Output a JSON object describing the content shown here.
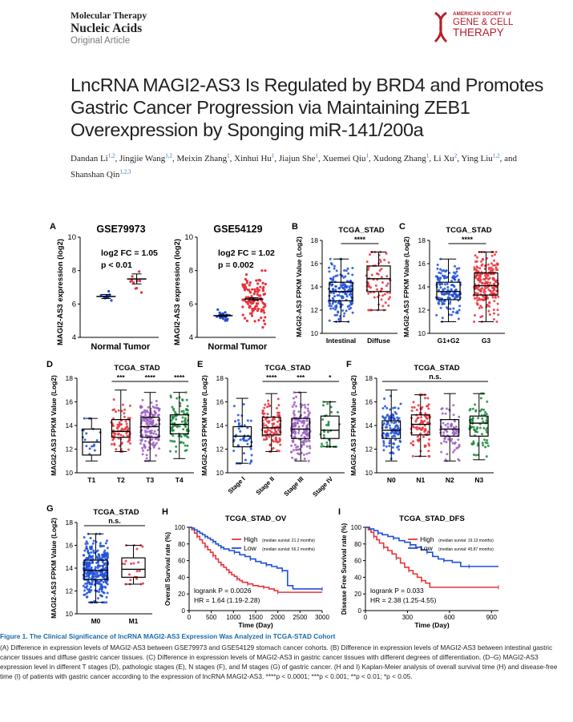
{
  "journal": {
    "line1": "Molecular Therapy",
    "line2": "Nucleic Acids",
    "article_type": "Original Article"
  },
  "society_logo": {
    "line1": "AMERICAN SOCIETY of",
    "line2": "GENE & CELL",
    "line3": "THERAPY",
    "color": "#b7202e"
  },
  "article": {
    "title": "LncRNA MAGI2-AS3 Is Regulated by BRD4 and Promotes Gastric Cancer Progression via Maintaining ZEB1 Overexpression by Sponging miR-141/200a",
    "authors": [
      {
        "name": "Dandan Li,",
        "aff": "1,2"
      },
      {
        "name": "Jingjie Wang,",
        "aff": "1,2"
      },
      {
        "name": "Meixin Zhang,",
        "aff": "1"
      },
      {
        "name": "Xinhui Hu,",
        "aff": "1"
      },
      {
        "name": "Jiajun She,",
        "aff": "1"
      },
      {
        "name": "Xuemei Qiu,",
        "aff": "1"
      },
      {
        "name": "Xudong Zhang,",
        "aff": "1"
      },
      {
        "name": "Li Xu,",
        "aff": "2"
      },
      {
        "name": "Ying Liu,",
        "aff": "1,2"
      },
      {
        "name": "and Shanshan Qin",
        "aff": "1,2,3"
      }
    ]
  },
  "figure": {
    "colors": {
      "blue": "#1f4fd8",
      "red": "#e8333c",
      "purple": "#9b5fc0",
      "green": "#1a8a3a",
      "navy": "#1b3a8c"
    },
    "panels": [
      {
        "letter": "A",
        "title": "GSE79973",
        "ylabel": "MAGI2-AS3 expression (log2)",
        "yticks": [
          "4",
          "6",
          "8",
          "10"
        ],
        "ylim": [
          4,
          10
        ],
        "stat1": "log2 FC = 1.05",
        "stat2": "p < 0.01",
        "groups": [
          {
            "label": "Normal",
            "color": "blue",
            "mean": 6.45,
            "sem": 0.12,
            "n": 10,
            "low": 5.9,
            "high": 6.9
          },
          {
            "label": "Tumor",
            "color": "red",
            "mean": 7.5,
            "sem": 0.3,
            "n": 10,
            "low": 6.6,
            "high": 8.9
          }
        ]
      },
      {
        "letter": "",
        "title": "GSE54129",
        "ylabel": "MAGI2-AS3 expression (log2)",
        "yticks": [
          "4",
          "6",
          "8",
          "10"
        ],
        "ylim": [
          4,
          10
        ],
        "stat1": "log2 FC = 1.02",
        "stat2": "p = 0.002",
        "groups": [
          {
            "label": "Normal",
            "color": "blue",
            "mean": 5.3,
            "sem": 0.05,
            "n": 21,
            "low": 5.0,
            "high": 5.8
          },
          {
            "label": "Tumor",
            "color": "red",
            "mean": 6.3,
            "sem": 0.08,
            "n": 111,
            "low": 4.6,
            "high": 8.0
          }
        ]
      },
      {
        "letter": "B",
        "title": "TCGA_STAD",
        "ylabel": "MAGI2-AS3 FPKM Value (Log2)",
        "yticks": [
          "10",
          "12",
          "14",
          "16",
          "18"
        ],
        "ylim": [
          10,
          18
        ],
        "sig": "****",
        "groups": [
          {
            "label": "Intestinal",
            "color": "blue",
            "min": 11.0,
            "q1": 12.8,
            "median": 13.6,
            "q3": 14.4,
            "max": 16.4,
            "n": 160
          },
          {
            "label": "Diffuse",
            "color": "red",
            "min": 12.0,
            "q1": 13.6,
            "median": 14.7,
            "q3": 15.8,
            "max": 17.0,
            "n": 70
          }
        ]
      },
      {
        "letter": "C",
        "title": "TCGA_STAD",
        "ylabel": "MAGI2-AS3 FPKM Value (Log2)",
        "yticks": [
          "10",
          "12",
          "14",
          "16",
          "18"
        ],
        "ylim": [
          10,
          18
        ],
        "sig": "****",
        "groups": [
          {
            "label": "G1+G2",
            "color": "blue",
            "min": 11.0,
            "q1": 12.9,
            "median": 13.6,
            "q3": 14.4,
            "max": 16.4,
            "n": 140
          },
          {
            "label": "G3",
            "color": "red",
            "min": 11.0,
            "q1": 13.3,
            "median": 14.1,
            "q3": 15.2,
            "max": 17.0,
            "n": 220
          }
        ]
      },
      {
        "letter": "D",
        "title": "TCGA_STAD",
        "ylabel": "MAGI2-AS3 FPKM Value (Log2)",
        "yticks": [
          "10",
          "12",
          "14",
          "16",
          "18"
        ],
        "ylim": [
          10,
          18
        ],
        "sigs": [
          "",
          "***",
          "****",
          "****"
        ],
        "groups": [
          {
            "label": "T1",
            "color": "blue",
            "min": 11.0,
            "q1": 11.5,
            "median": 12.6,
            "q3": 13.7,
            "max": 14.6,
            "n": 18
          },
          {
            "label": "T2",
            "color": "red",
            "min": 11.8,
            "q1": 13.0,
            "median": 13.5,
            "q3": 14.5,
            "max": 17.0,
            "n": 80
          },
          {
            "label": "T3",
            "color": "purple",
            "min": 11.0,
            "q1": 13.0,
            "median": 13.9,
            "q3": 14.7,
            "max": 16.8,
            "n": 160
          },
          {
            "label": "T4",
            "color": "green",
            "min": 11.2,
            "q1": 13.3,
            "median": 14.1,
            "q3": 14.9,
            "max": 16.8,
            "n": 95
          }
        ]
      },
      {
        "letter": "E",
        "title": "TCGA_STAD",
        "ylabel": "MAGI2-AS3 FPKM Value (Log2)",
        "yticks": [
          "10",
          "12",
          "14",
          "16",
          "18"
        ],
        "ylim": [
          10,
          18
        ],
        "sigs": [
          "",
          "****",
          "***",
          "*"
        ],
        "groups": [
          {
            "label": "Stage I",
            "color": "blue",
            "min": 10.8,
            "q1": 12.2,
            "median": 13.1,
            "q3": 13.9,
            "max": 16.3,
            "n": 50
          },
          {
            "label": "Stage II",
            "color": "red",
            "min": 11.8,
            "q1": 13.2,
            "median": 13.8,
            "q3": 14.7,
            "max": 16.7,
            "n": 110
          },
          {
            "label": "Stage III",
            "color": "purple",
            "min": 11.0,
            "q1": 12.9,
            "median": 13.7,
            "q3": 14.6,
            "max": 16.8,
            "n": 150
          },
          {
            "label": "Stage IV",
            "color": "green",
            "min": 12.2,
            "q1": 12.9,
            "median": 13.6,
            "q3": 14.8,
            "max": 16.0,
            "n": 35
          }
        ]
      },
      {
        "letter": "F",
        "title": "TCGA_STAD",
        "ylabel": "MAGI2-AS3 FPKM Value (Log2)",
        "yticks": [
          "10",
          "12",
          "14",
          "16",
          "18"
        ],
        "ylim": [
          10,
          18
        ],
        "sig_all": "n.s.",
        "groups": [
          {
            "label": "N0",
            "color": "blue",
            "min": 11.0,
            "q1": 12.9,
            "median": 13.6,
            "q3": 14.4,
            "max": 17.0,
            "n": 110
          },
          {
            "label": "N1",
            "color": "red",
            "min": 11.4,
            "q1": 13.2,
            "median": 14.1,
            "q3": 14.9,
            "max": 16.6,
            "n": 95
          },
          {
            "label": "N2",
            "color": "purple",
            "min": 11.0,
            "q1": 13.1,
            "median": 13.7,
            "q3": 14.5,
            "max": 16.7,
            "n": 75
          },
          {
            "label": "N3",
            "color": "green",
            "min": 11.1,
            "q1": 13.1,
            "median": 14.2,
            "q3": 14.8,
            "max": 16.7,
            "n": 75
          }
        ]
      },
      {
        "letter": "G",
        "title": "TCGA_STAD",
        "ylabel": "MAGI2-AS3 FPKM Value (Log2)",
        "yticks": [
          "10",
          "12",
          "14",
          "16",
          "18"
        ],
        "ylim": [
          10,
          18
        ],
        "sig_all": "n.s.",
        "groups": [
          {
            "label": "M0",
            "color": "blue",
            "min": 11.0,
            "q1": 13.0,
            "median": 13.8,
            "q3": 14.7,
            "max": 17.0,
            "n": 320
          },
          {
            "label": "M1",
            "color": "red",
            "min": 12.6,
            "q1": 13.2,
            "median": 13.9,
            "q3": 14.9,
            "max": 16.0,
            "n": 22
          }
        ]
      }
    ],
    "survival": [
      {
        "letter": "H",
        "title": "TCGA_STAD_OV",
        "ylabel": "Overall Survival rate (%)",
        "xlabel": "Time (Day)",
        "xticks": [
          "0",
          "500",
          "1000",
          "1500",
          "2000",
          "2500",
          "3000"
        ],
        "yticks": [
          "0",
          "20",
          "40",
          "60",
          "80",
          "100"
        ],
        "xmax": 3000,
        "legend": [
          {
            "label": "High",
            "note": "(median survial: 21.2 months)",
            "color": "red"
          },
          {
            "label": "Low",
            "note": "(median survial: 56.2 months)",
            "color": "blue"
          }
        ],
        "logrank": "logrank P = 0.0026",
        "hr": "HR = 1.64 (1.19-2.28)",
        "curves": [
          {
            "color": "red",
            "points": [
              [
                0,
                100
              ],
              [
                60,
                97
              ],
              [
                120,
                93
              ],
              [
                180,
                89
              ],
              [
                240,
                85
              ],
              [
                300,
                81
              ],
              [
                360,
                77
              ],
              [
                420,
                73
              ],
              [
                480,
                70
              ],
              [
                540,
                66
              ],
              [
                600,
                62
              ],
              [
                660,
                58
              ],
              [
                720,
                55
              ],
              [
                780,
                52
              ],
              [
                840,
                49
              ],
              [
                900,
                46
              ],
              [
                960,
                43
              ],
              [
                1020,
                41
              ],
              [
                1080,
                38
              ],
              [
                1140,
                36
              ],
              [
                1200,
                34
              ],
              [
                1320,
                32
              ],
              [
                1440,
                30
              ],
              [
                1560,
                29
              ],
              [
                1680,
                28
              ],
              [
                1800,
                26
              ],
              [
                1920,
                24
              ],
              [
                2000,
                22
              ],
              [
                3000,
                22
              ]
            ]
          },
          {
            "color": "blue",
            "points": [
              [
                0,
                100
              ],
              [
                60,
                99
              ],
              [
                120,
                97
              ],
              [
                180,
                95
              ],
              [
                240,
                93
              ],
              [
                300,
                91
              ],
              [
                360,
                89
              ],
              [
                420,
                87
              ],
              [
                480,
                85
              ],
              [
                540,
                83
              ],
              [
                600,
                80
              ],
              [
                660,
                78
              ],
              [
                720,
                76
              ],
              [
                780,
                74
              ],
              [
                900,
                72
              ],
              [
                1020,
                70
              ],
              [
                1140,
                67
              ],
              [
                1260,
                65
              ],
              [
                1380,
                62
              ],
              [
                1500,
                59
              ],
              [
                1620,
                57
              ],
              [
                1740,
                55
              ],
              [
                1860,
                53
              ],
              [
                1980,
                51
              ],
              [
                2100,
                48
              ],
              [
                2220,
                30
              ],
              [
                2340,
                26
              ],
              [
                3000,
                26
              ]
            ]
          }
        ]
      },
      {
        "letter": "I",
        "title": "TCGA_STAD_DFS",
        "ylabel": "Disease Free Survival rate (%)",
        "xlabel": "Time (Day)",
        "xticks": [
          "0",
          "300",
          "600",
          "900"
        ],
        "yticks": [
          "0",
          "20",
          "40",
          "60",
          "80",
          "100"
        ],
        "xmax": 950,
        "legend": [
          {
            "label": "High",
            "note": "(median survial: 19.13 months)",
            "color": "red"
          },
          {
            "label": "Low",
            "note": "(median survial: 45.87 months)",
            "color": "blue"
          }
        ],
        "logrank": "logrank P = 0.033",
        "hr": "HR = 2.38 (1.25-4.55)",
        "curves": [
          {
            "color": "red",
            "points": [
              [
                0,
                100
              ],
              [
                20,
                97
              ],
              [
                40,
                94
              ],
              [
                60,
                89
              ],
              [
                80,
                85
              ],
              [
                100,
                81
              ],
              [
                130,
                76
              ],
              [
                160,
                72
              ],
              [
                190,
                68
              ],
              [
                220,
                63
              ],
              [
                250,
                57
              ],
              [
                280,
                52
              ],
              [
                310,
                48
              ],
              [
                340,
                44
              ],
              [
                370,
                40
              ],
              [
                400,
                36
              ],
              [
                430,
                33
              ],
              [
                460,
                28
              ],
              [
                950,
                28
              ]
            ]
          },
          {
            "color": "blue",
            "points": [
              [
                0,
                100
              ],
              [
                30,
                98
              ],
              [
                60,
                96
              ],
              [
                90,
                93
              ],
              [
                120,
                91
              ],
              [
                160,
                89
              ],
              [
                200,
                87
              ],
              [
                240,
                84
              ],
              [
                280,
                82
              ],
              [
                320,
                79
              ],
              [
                360,
                76
              ],
              [
                400,
                73
              ],
              [
                440,
                70
              ],
              [
                480,
                65
              ],
              [
                520,
                62
              ],
              [
                560,
                60
              ],
              [
                620,
                58
              ],
              [
                680,
                53
              ],
              [
                740,
                53
              ],
              [
                950,
                53
              ]
            ]
          }
        ]
      }
    ]
  },
  "caption": {
    "title": "Figure 1. The Clinical Significance of lncRNA MAGI2-AS3 Expression Was Analyzed in TCGA-STAD Cohort",
    "body": "(A) Difference in expression levels of MAGI2-AS3 between GSE79973 and GSE54129 stomach cancer cohorts. (B) Difference in expression levels of MAGI2-AS3 between intestinal gastric cancer tissues and diffuse gastric cancer tissues. (C) Difference in expression levels of MAGI2-AS3 in gastric cancer tissues with different degrees of differentiation. (D–G) MAGI2-AS3 expression level in different T stages (D), pathologic stages (E), N stages (F), and M stages (G) of gastric cancer. (H and I) Kaplan-Meier analysis of overall survival time (H) and disease-free time (I) of patients with gastric cancer according to the expression of lncRNA MAGI2-AS3. ****p < 0.0001; ***p < 0.001; **p < 0.01; *p < 0.05."
  }
}
